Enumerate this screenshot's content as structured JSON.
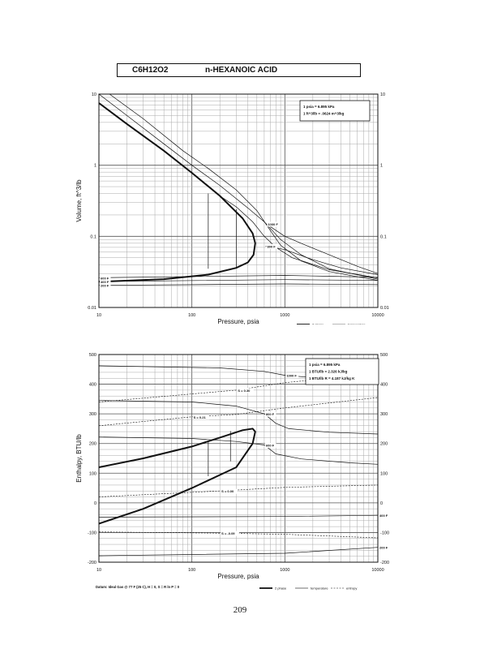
{
  "header": {
    "formula": "C6H12O2",
    "name": "n-HEXANOIC ACID"
  },
  "page_number": "209",
  "footer_note": "Datum: Ideal Gas @ 77 F (25 C), H = 0, S = R ln P = 0",
  "colors": {
    "ink": "#111111",
    "grid_major": "#555555",
    "grid_minor": "#a8a8a8"
  },
  "chart_data": [
    {
      "type": "line",
      "xscale": "log",
      "yscale": "log",
      "xlim": [
        10,
        10000
      ],
      "ylim": [
        0.01,
        10
      ],
      "xticks": [
        "10",
        "100",
        "1000",
        "10000"
      ],
      "yticks": [
        "0.01",
        "0.1",
        "1",
        "10"
      ],
      "xlabel": "Pressure,  psia",
      "ylabel": "Volume, ft^3/lb",
      "conversions": [
        "1 psia  =  6.895 kPa",
        "1 ft^3/lb  =  .0624 m^3/kg"
      ],
      "legend": {
        "position": "bottom-right",
        "items": [
          "2 phase",
          "temperature"
        ]
      },
      "series": [
        {
          "kind": "two-phase",
          "points": [
            [
              10,
              7.5
            ],
            [
              20,
              3.8
            ],
            [
              50,
              1.6
            ],
            [
              100,
              0.78
            ],
            [
              200,
              0.37
            ],
            [
              350,
              0.18
            ],
            [
              450,
              0.11
            ],
            [
              480,
              0.08
            ],
            [
              460,
              0.055
            ],
            [
              400,
              0.043
            ],
            [
              300,
              0.036
            ],
            [
              150,
              0.029
            ],
            [
              50,
              0.025
            ],
            [
              10,
              0.023
            ]
          ]
        },
        {
          "kind": "temperature",
          "points": [
            [
              10,
              10
            ],
            [
              20,
              5
            ],
            [
              50,
              2
            ],
            [
              100,
              1
            ],
            [
              200,
              0.52
            ],
            [
              400,
              0.25
            ],
            [
              600,
              0.16
            ],
            [
              900,
              0.09
            ],
            [
              1500,
              0.055
            ],
            [
              3000,
              0.035
            ],
            [
              10000,
              0.025
            ]
          ]
        },
        {
          "kind": "temperature",
          "points": [
            [
              13,
              10
            ],
            [
              30,
              4.5
            ],
            [
              80,
              1.6
            ],
            [
              150,
              0.9
            ],
            [
              300,
              0.45
            ],
            [
              500,
              0.23
            ],
            [
              700,
              0.12
            ],
            [
              900,
              0.075
            ],
            [
              1500,
              0.045
            ],
            [
              3000,
              0.032
            ],
            [
              10000,
              0.024
            ]
          ]
        },
        {
          "kind": "temperature",
          "points": [
            [
              200,
              0.37
            ],
            [
              300,
              0.26
            ],
            [
              450,
              0.16
            ],
            [
              600,
              0.1
            ],
            [
              800,
              0.07
            ],
            [
              1200,
              0.05
            ],
            [
              3000,
              0.034
            ],
            [
              10000,
              0.026
            ]
          ]
        },
        {
          "kind": "temperature",
          "label": "1000 F",
          "points": [
            [
              630,
              0.15
            ],
            [
              1000,
              0.1
            ],
            [
              1600,
              0.077
            ],
            [
              3000,
              0.055
            ],
            [
              6000,
              0.038
            ],
            [
              10000,
              0.03
            ]
          ]
        },
        {
          "kind": "temperature",
          "label": "800 F",
          "points": [
            [
              620,
              0.073
            ],
            [
              1000,
              0.065
            ],
            [
              2000,
              0.047
            ],
            [
              4000,
              0.036
            ],
            [
              10000,
              0.029
            ]
          ]
        },
        {
          "kind": "temperature",
          "label": "600 F",
          "points": [
            [
              10,
              0.0262
            ],
            [
              1000,
              0.0282
            ],
            [
              3000,
              0.0275
            ],
            [
              10000,
              0.0266
            ]
          ]
        },
        {
          "kind": "temperature",
          "label": "400 F",
          "points": [
            [
              10,
              0.0232
            ],
            [
              1000,
              0.0246
            ],
            [
              10000,
              0.024
            ]
          ]
        },
        {
          "kind": "temperature",
          "label": "200 F",
          "points": [
            [
              10,
              0.0205
            ],
            [
              1000,
              0.0214
            ],
            [
              10000,
              0.021
            ]
          ]
        }
      ],
      "verticals": [
        [
          150,
          0.035,
          0.4
        ],
        [
          300,
          0.036,
          0.24
        ]
      ]
    },
    {
      "type": "line",
      "xscale": "log",
      "yscale": "linear",
      "xlim": [
        10,
        10000
      ],
      "ylim": [
        -200,
        500
      ],
      "xticks": [
        "10",
        "100",
        "1000",
        "10000"
      ],
      "yticks": [
        "-200",
        "-100",
        "0",
        "100",
        "200",
        "300",
        "400",
        "500"
      ],
      "xlabel": "Pressure,  psia",
      "ylabel": "Enthalpy, BTU/lb",
      "conversions": [
        "1 psia  =  6.895 kPa",
        "1 BTU/lb  =  2.326 kJ/kg",
        "1 BTU/lb R  =  4.187 kJ/kg K"
      ],
      "legend": {
        "position": "bottom-right",
        "items": [
          "2 phase",
          "temperature",
          "entropy"
        ]
      },
      "series": [
        {
          "kind": "two-phase",
          "points": [
            [
              10,
              120
            ],
            [
              30,
              150
            ],
            [
              100,
              190
            ],
            [
              200,
              220
            ],
            [
              350,
              245
            ],
            [
              450,
              250
            ],
            [
              480,
              240
            ],
            [
              450,
              200
            ],
            [
              300,
              120
            ],
            [
              100,
              50
            ],
            [
              30,
              -20
            ],
            [
              10,
              -70
            ]
          ]
        },
        {
          "kind": "temperature",
          "label": "1000 F",
          "points": [
            [
              10,
              462
            ],
            [
              200,
              455
            ],
            [
              600,
              443
            ],
            [
              1000,
              430
            ],
            [
              3000,
              418
            ],
            [
              10000,
              410
            ]
          ]
        },
        {
          "kind": "temperature",
          "label": "800 F",
          "points": [
            [
              10,
              345
            ],
            [
              100,
              340
            ],
            [
              300,
              326
            ],
            [
              600,
              300
            ],
            [
              800,
              268
            ],
            [
              1100,
              250
            ],
            [
              3000,
              238
            ],
            [
              10000,
              232
            ]
          ]
        },
        {
          "kind": "temperature",
          "label": "600 F",
          "points": [
            [
              10,
              222
            ],
            [
              100,
              217
            ],
            [
              300,
              207
            ],
            [
              600,
              195
            ],
            [
              800,
              165
            ],
            [
              1500,
              148
            ],
            [
              5000,
              135
            ],
            [
              10000,
              130
            ]
          ]
        },
        {
          "kind": "temperature",
          "label": "400 F",
          "points": [
            [
              10,
              -48
            ],
            [
              1000,
              -46
            ],
            [
              10000,
              -42
            ]
          ]
        },
        {
          "kind": "temperature",
          "label": "200 F",
          "points": [
            [
              10,
              -178
            ],
            [
              1000,
              -170
            ],
            [
              10000,
              -150
            ]
          ]
        },
        {
          "kind": "entropy",
          "label": "S = 0.30",
          "points": [
            [
              10,
              340
            ],
            [
              300,
              380
            ],
            [
              1000,
              405
            ],
            [
              10000,
              435
            ]
          ]
        },
        {
          "kind": "entropy",
          "label": "S = 0.21",
          "points": [
            [
              10,
              260
            ],
            [
              100,
              290
            ],
            [
              300,
              298
            ],
            [
              1000,
              320
            ],
            [
              10000,
              355
            ]
          ]
        },
        {
          "kind": "entropy",
          "label": "S = 0.00",
          "points": [
            [
              10,
              20
            ],
            [
              200,
              40
            ],
            [
              1000,
              52
            ],
            [
              10000,
              60
            ]
          ]
        },
        {
          "kind": "entropy",
          "label": "S = -0.09",
          "points": [
            [
              10,
              -98
            ],
            [
              200,
              -102
            ],
            [
              1000,
              -106
            ],
            [
              10000,
              -118
            ]
          ]
        }
      ],
      "verticals": [
        [
          150,
          90,
          210
        ],
        [
          260,
          140,
          242
        ]
      ]
    }
  ]
}
